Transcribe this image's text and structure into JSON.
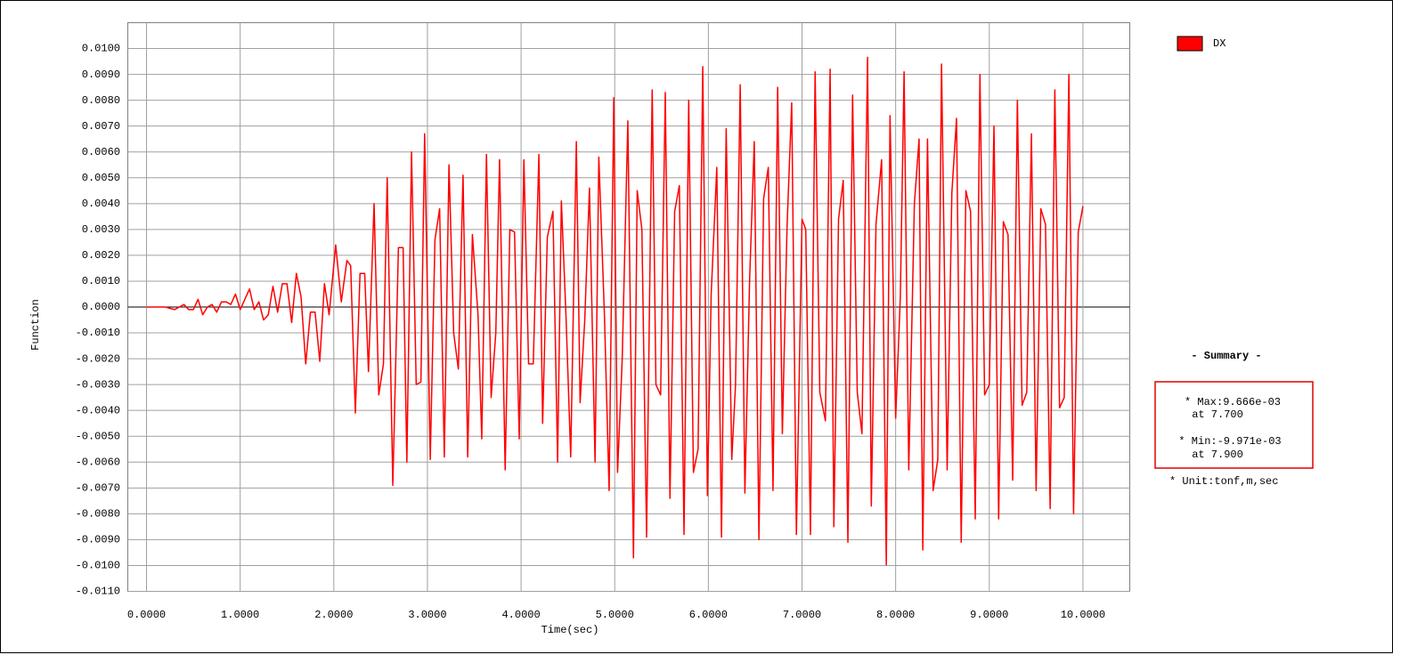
{
  "chart_data": {
    "type": "line",
    "x_label": "Time(sec)",
    "y_label": "Function",
    "xlim": [
      -0.2,
      10.5
    ],
    "ylim": [
      -0.011,
      0.011
    ],
    "xticks": [
      {
        "value": 0,
        "label": "0.0000"
      },
      {
        "value": 1,
        "label": "1.0000"
      },
      {
        "value": 2,
        "label": "2.0000"
      },
      {
        "value": 3,
        "label": "3.0000"
      },
      {
        "value": 4,
        "label": "4.0000"
      },
      {
        "value": 5,
        "label": "5.0000"
      },
      {
        "value": 6,
        "label": "6.0000"
      },
      {
        "value": 7,
        "label": "7.0000"
      },
      {
        "value": 8,
        "label": "8.0000"
      },
      {
        "value": 9,
        "label": "9.0000"
      },
      {
        "value": 10,
        "label": "10.0000"
      }
    ],
    "yticks": [
      {
        "value": -0.011,
        "label": "-0.0110"
      },
      {
        "value": -0.01,
        "label": "-0.0100"
      },
      {
        "value": -0.009,
        "label": "-0.0090"
      },
      {
        "value": -0.008,
        "label": "-0.0080"
      },
      {
        "value": -0.007,
        "label": "-0.0070"
      },
      {
        "value": -0.006,
        "label": "-0.0060"
      },
      {
        "value": -0.005,
        "label": "-0.0050"
      },
      {
        "value": -0.004,
        "label": "-0.0040"
      },
      {
        "value": -0.003,
        "label": "-0.0030"
      },
      {
        "value": -0.002,
        "label": "-0.0020"
      },
      {
        "value": -0.001,
        "label": "-0.0010"
      },
      {
        "value": 0,
        "label": "0.0000"
      },
      {
        "value": 0.001,
        "label": "0.0010"
      },
      {
        "value": 0.002,
        "label": "0.0020"
      },
      {
        "value": 0.003,
        "label": "0.0030"
      },
      {
        "value": 0.004,
        "label": "0.0040"
      },
      {
        "value": 0.005,
        "label": "0.0050"
      },
      {
        "value": 0.006,
        "label": "0.0060"
      },
      {
        "value": 0.007,
        "label": "0.0070"
      },
      {
        "value": 0.008,
        "label": "0.0080"
      },
      {
        "value": 0.009,
        "label": "0.0090"
      },
      {
        "value": 0.01,
        "label": "0.0100"
      }
    ],
    "grid": true,
    "x": [
      0,
      0.2,
      0.3,
      0.35,
      0.4,
      0.45,
      0.5,
      0.55,
      0.6,
      0.65,
      0.7,
      0.75,
      0.8,
      0.85,
      0.9,
      0.95,
      1.0,
      1.05,
      1.1,
      1.15,
      1.2,
      1.25,
      1.3,
      1.35,
      1.4,
      1.45,
      1.5,
      1.55,
      1.6,
      1.65,
      1.7,
      1.75,
      1.8,
      1.85,
      1.9,
      1.95,
      2.02,
      2.08,
      2.14,
      2.18,
      2.23,
      2.28,
      2.33,
      2.37,
      2.43,
      2.48,
      2.53,
      2.57,
      2.63,
      2.69,
      2.74,
      2.78,
      2.83,
      2.88,
      2.93,
      2.97,
      3.03,
      3.08,
      3.13,
      3.18,
      3.23,
      3.28,
      3.33,
      3.38,
      3.43,
      3.48,
      3.54,
      3.58,
      3.63,
      3.68,
      3.73,
      3.77,
      3.83,
      3.88,
      3.93,
      3.98,
      4.03,
      4.08,
      4.13,
      4.19,
      4.23,
      4.28,
      4.34,
      4.39,
      4.43,
      4.48,
      4.53,
      4.59,
      4.63,
      4.68,
      4.73,
      4.79,
      4.83,
      4.89,
      4.94,
      4.99,
      5.03,
      5.08,
      5.14,
      5.2,
      5.24,
      5.29,
      5.34,
      5.4,
      5.44,
      5.49,
      5.54,
      5.59,
      5.64,
      5.69,
      5.74,
      5.79,
      5.84,
      5.89,
      5.94,
      5.99,
      6.03,
      6.09,
      6.14,
      6.19,
      6.25,
      6.29,
      6.34,
      6.39,
      6.44,
      6.49,
      6.54,
      6.59,
      6.64,
      6.69,
      6.74,
      6.79,
      6.84,
      6.89,
      6.94,
      7.0,
      7.04,
      7.09,
      7.14,
      7.19,
      7.25,
      7.3,
      7.34,
      7.39,
      7.44,
      7.49,
      7.54,
      7.59,
      7.64,
      7.7,
      7.74,
      7.79,
      7.85,
      7.9,
      7.94,
      8.0,
      8.05,
      8.09,
      8.14,
      8.2,
      8.25,
      8.29,
      8.34,
      8.4,
      8.45,
      8.49,
      8.55,
      8.6,
      8.65,
      8.7,
      8.75,
      8.8,
      8.85,
      8.9,
      8.95,
      9.0,
      9.05,
      9.1,
      9.15,
      9.2,
      9.25,
      9.3,
      9.35,
      9.4,
      9.45,
      9.5,
      9.55,
      9.6,
      9.65,
      9.7,
      9.75,
      9.8,
      9.85,
      9.9,
      9.95,
      10.0
    ],
    "series": [
      {
        "name": "DX",
        "color": "#ff0000",
        "values": [
          0,
          0,
          -0.0001,
          0,
          0.0001,
          -0.0001,
          -0.0001,
          0.0003,
          -0.0003,
          0,
          0.0001,
          -0.0002,
          0.0002,
          0.0002,
          0.0001,
          0.0005,
          -0.0001,
          0.0003,
          0.0007,
          -0.0001,
          0.0002,
          -0.0005,
          -0.0003,
          0.0008,
          -0.0002,
          0.0009,
          0.0009,
          -0.0006,
          0.0013,
          0.0004,
          -0.0022,
          -0.0002,
          -0.0002,
          -0.0021,
          0.0009,
          -0.0003,
          0.0024,
          0.0002,
          0.0018,
          0.0016,
          -0.0041,
          0.0013,
          0.0013,
          -0.0025,
          0.004,
          -0.0034,
          -0.0022,
          0.005,
          -0.0069,
          0.0023,
          0.0023,
          -0.006,
          0.006,
          -0.003,
          -0.0029,
          0.0067,
          -0.0059,
          0.0026,
          0.0038,
          -0.0058,
          0.0055,
          -0.001,
          -0.0024,
          0.0051,
          -0.0058,
          0.0028,
          -0.0003,
          -0.0051,
          0.0059,
          -0.0035,
          -0.001,
          0.0057,
          -0.0063,
          0.003,
          0.0029,
          -0.0051,
          0.0057,
          -0.0022,
          -0.0022,
          0.0059,
          -0.0045,
          0.0027,
          0.0037,
          -0.006,
          0.0041,
          -0.0004,
          -0.0058,
          0.0064,
          -0.0037,
          -0.0005,
          0.0046,
          -0.006,
          0.0058,
          -0.0003,
          -0.0071,
          0.0081,
          -0.0064,
          -0.002,
          0.0072,
          -0.0097,
          0.0045,
          0.003,
          -0.0089,
          0.0084,
          -0.003,
          -0.0034,
          0.0083,
          -0.0074,
          0.0037,
          0.0047,
          -0.0088,
          0.008,
          -0.0064,
          -0.0055,
          0.0093,
          -0.0073,
          0.0005,
          0.0054,
          -0.0089,
          0.0069,
          -0.0059,
          -0.003,
          0.0086,
          -0.0072,
          0.001,
          0.0064,
          -0.009,
          0.0042,
          0.0054,
          -0.0071,
          0.0085,
          -0.0049,
          0.0031,
          0.0079,
          -0.0088,
          0.0034,
          0.003,
          -0.0088,
          0.0091,
          -0.0033,
          -0.0044,
          0.0092,
          -0.0085,
          0.0034,
          0.0049,
          -0.0091,
          0.0082,
          -0.0033,
          -0.0049,
          0.00966,
          -0.0077,
          0.0032,
          0.0057,
          -0.00997,
          0.0074,
          -0.0043,
          0.0004,
          0.0091,
          -0.0063,
          0.004,
          0.0065,
          -0.0094,
          0.0065,
          -0.0071,
          -0.0059,
          0.0094,
          -0.0063,
          0.0044,
          0.0073,
          -0.0091,
          0.0045,
          0.0037,
          -0.0082,
          0.009,
          -0.0034,
          -0.003,
          0.007,
          -0.0082,
          0.0033,
          0.0028,
          -0.0067,
          0.008,
          -0.0038,
          -0.0033,
          0.0067,
          -0.0071,
          0.0038,
          0.0032,
          -0.0078,
          0.0084,
          -0.0039,
          -0.0035,
          0.009,
          -0.008,
          0.0029,
          0.0039
        ]
      }
    ],
    "summary": {
      "title": "- Summary -",
      "max": "* Max:9.666e-03",
      "max_at": "at  7.700",
      "min": "* Min:-9.971e-03",
      "min_at": "at  7.900",
      "unit": "* Unit:tonf,m,sec"
    }
  }
}
